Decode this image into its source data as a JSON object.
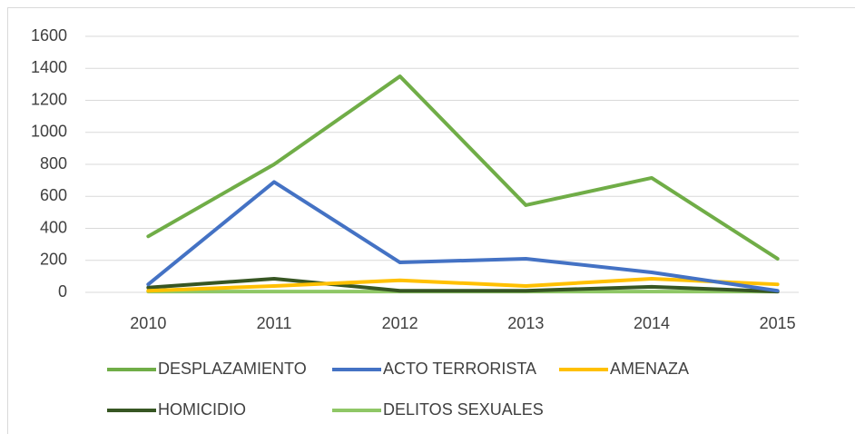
{
  "chart_data": {
    "type": "line",
    "categories": [
      "2010",
      "2011",
      "2012",
      "2013",
      "2014",
      "2015"
    ],
    "series": [
      {
        "name": "DESPLAZAMIENTO",
        "color": "#70ad47",
        "values": [
          350,
          800,
          1350,
          545,
          715,
          210
        ]
      },
      {
        "name": "ACTO TERRORISTA",
        "color": "#4472c4",
        "values": [
          50,
          690,
          187,
          210,
          125,
          10
        ]
      },
      {
        "name": "AMENAZA",
        "color": "#ffc000",
        "values": [
          10,
          40,
          75,
          40,
          85,
          50
        ]
      },
      {
        "name": "HOMICIDIO",
        "color": "#375623",
        "values": [
          30,
          85,
          10,
          10,
          35,
          5
        ]
      },
      {
        "name": "DELITOS SEXUALES",
        "color": "#8fc766",
        "values": [
          5,
          5,
          5,
          5,
          5,
          5
        ]
      }
    ],
    "ylim": [
      0,
      1600
    ],
    "yticks": [
      0,
      200,
      400,
      600,
      800,
      1000,
      1200,
      1400,
      1600
    ],
    "grid": true,
    "legend": "bottom"
  }
}
